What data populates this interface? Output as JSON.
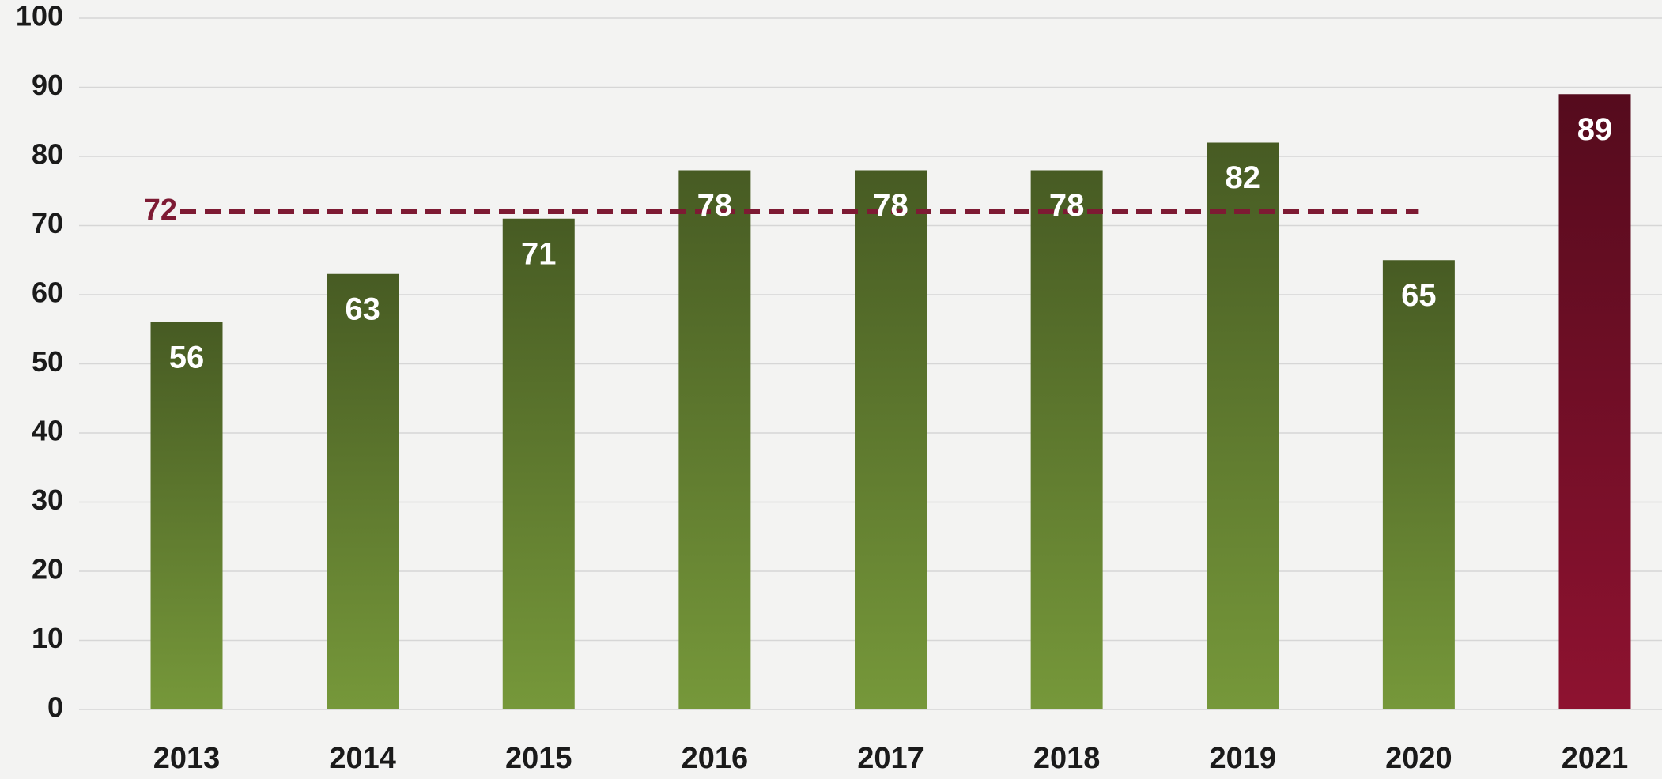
{
  "chart_data": {
    "type": "bar",
    "categories": [
      "2013",
      "2014",
      "2015",
      "2016",
      "2017",
      "2018",
      "2019",
      "2020",
      "2021"
    ],
    "values": [
      56,
      63,
      71,
      78,
      78,
      78,
      82,
      65,
      89
    ],
    "colors": [
      "#76983a",
      "#76983a",
      "#76983a",
      "#76983a",
      "#76983a",
      "#76983a",
      "#76983a",
      "#76983a",
      "#8e1230"
    ],
    "ylim": [
      0,
      100
    ],
    "yticks": [
      0,
      10,
      20,
      30,
      40,
      50,
      60,
      70,
      80,
      90,
      100
    ],
    "grid": true,
    "reference_line": {
      "value": 72,
      "color": "#7d1a33"
    }
  }
}
